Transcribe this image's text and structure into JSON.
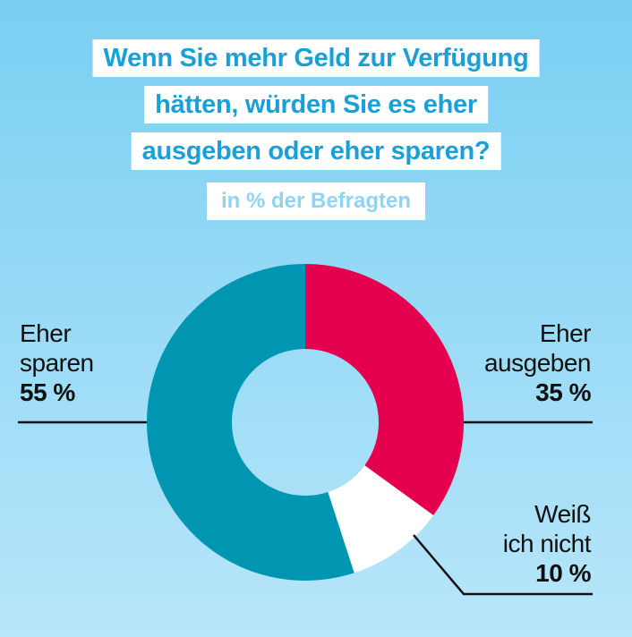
{
  "header": {
    "title_lines": [
      "Wenn Sie mehr Geld zur Verfügung",
      "hätten, würden Sie es eher",
      "ausgeben oder eher sparen?"
    ],
    "subtitle": "in % der Befragten"
  },
  "labels": {
    "sparen": {
      "line1": "Eher",
      "line2": "sparen",
      "pct": "55 %"
    },
    "ausgeben": {
      "line1": "Eher",
      "line2": "ausgeben",
      "pct": "35 %"
    },
    "weiss": {
      "line1": "Weiß",
      "line2": "ich nicht",
      "pct": "10 %"
    }
  },
  "chart_data": {
    "type": "pie",
    "style": "donut",
    "title": "Wenn Sie mehr Geld zur Verfügung hätten, würden Sie es eher ausgeben oder eher sparen?",
    "subtitle": "in % der Befragten",
    "unit": "%",
    "slices": [
      {
        "label": "Eher ausgeben",
        "value": 35,
        "color": "#e5004f"
      },
      {
        "label": "Weiß ich nicht",
        "value": 10,
        "color": "#ffffff"
      },
      {
        "label": "Eher sparen",
        "value": 55,
        "color": "#0096b2"
      }
    ]
  }
}
